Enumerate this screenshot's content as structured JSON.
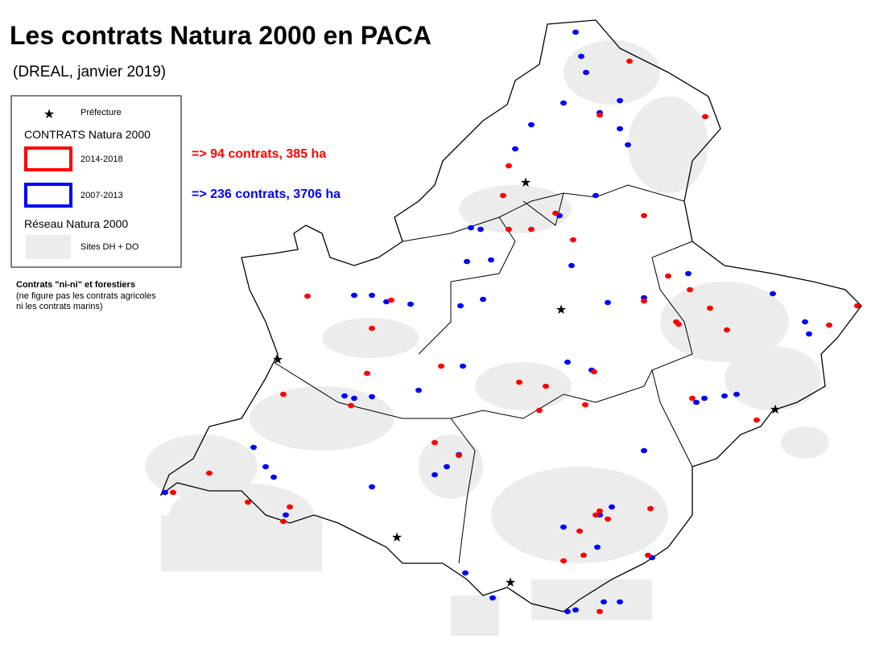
{
  "header": {
    "title": "Les contrats Natura 2000 en PACA",
    "subtitle": "(DREAL, janvier 2019)"
  },
  "legend": {
    "prefecture": "Préfecture",
    "contracts_title": "CONTRATS Natura 2000",
    "recent": "2014-2018",
    "older": "2007-2013",
    "network_title": "Réseau Natura 2000",
    "sites": "Sites DH + DO"
  },
  "annotations": {
    "recent": "=> 94 contrats, 385 ha",
    "older": "=> 236 contrats, 3706 ha"
  },
  "note": {
    "title": "Contrats \"ni-ni\" et forestiers",
    "line1": "(ne figure pas les contrats agricoles",
    "line2": "ni les contrats marins)"
  }
}
